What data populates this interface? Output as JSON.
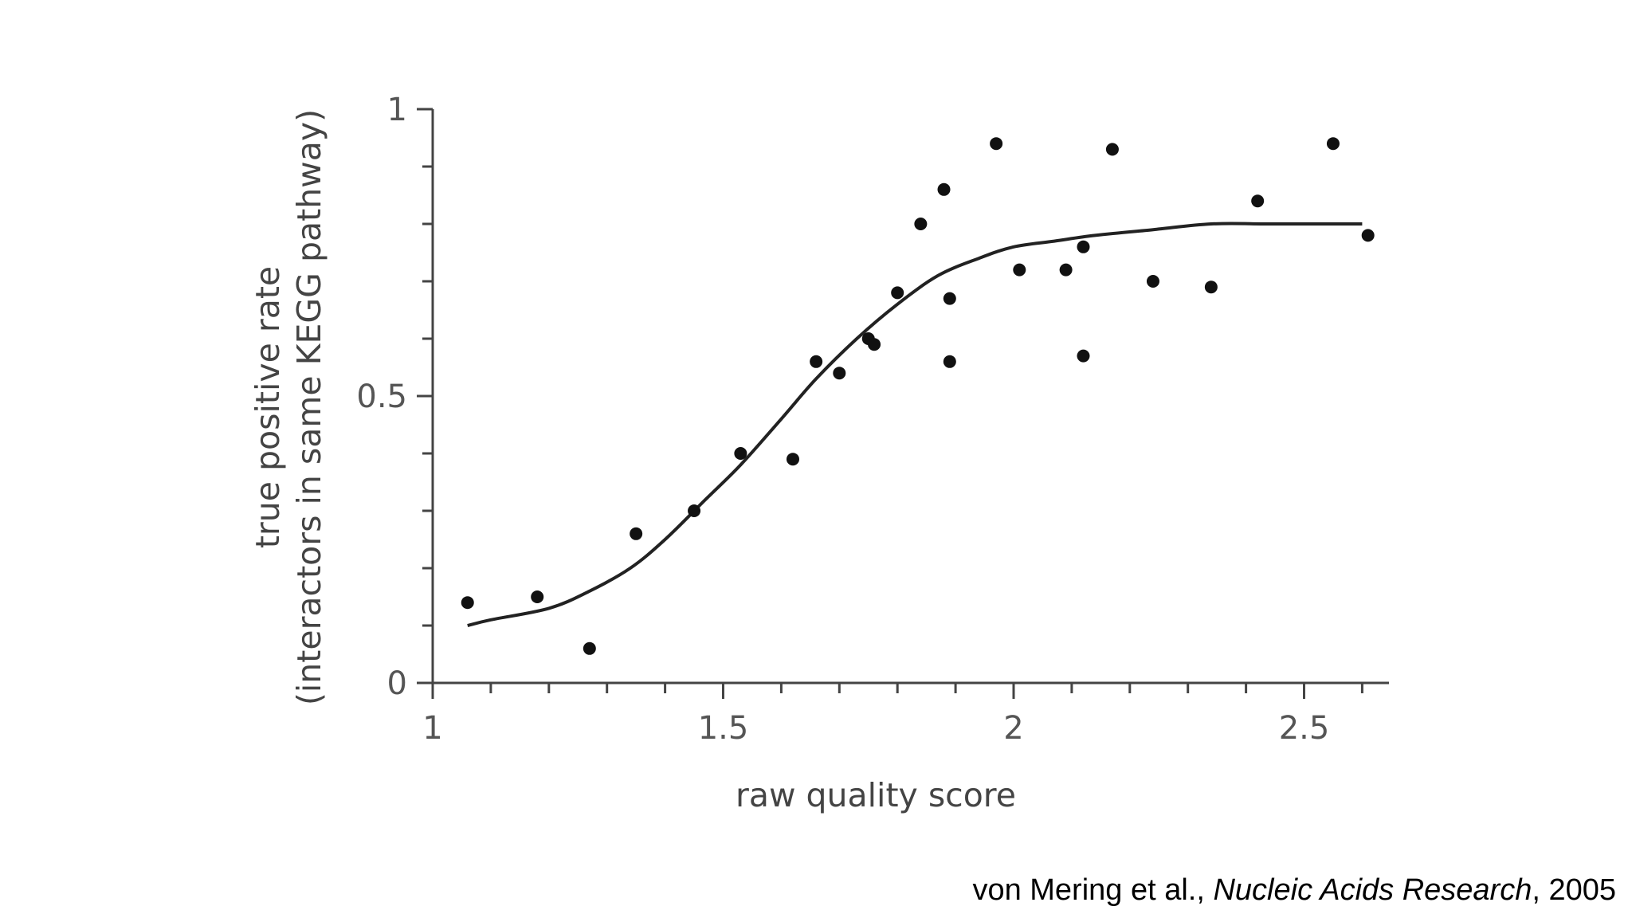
{
  "chart_data": {
    "type": "scatter",
    "xlabel": "raw quality score",
    "ylabel_line1": "true positive rate",
    "ylabel_line2": "(interactors in same KEGG pathway)",
    "xlim": [
      1,
      2.65
    ],
    "ylim": [
      0,
      1
    ],
    "x_ticks": [
      {
        "value": 1,
        "label": "1"
      },
      {
        "value": 1.5,
        "label": "1.5"
      },
      {
        "value": 2,
        "label": "2"
      },
      {
        "value": 2.5,
        "label": "2.5"
      }
    ],
    "x_minor_ticks": [
      1.1,
      1.2,
      1.3,
      1.4,
      1.6,
      1.7,
      1.8,
      1.9,
      2.1,
      2.2,
      2.3,
      2.4,
      2.6
    ],
    "y_ticks": [
      {
        "value": 0,
        "label": "0"
      },
      {
        "value": 0.5,
        "label": "0.5"
      },
      {
        "value": 1,
        "label": "1"
      }
    ],
    "y_minor_ticks": [
      0.1,
      0.2,
      0.3,
      0.4,
      0.6,
      0.7,
      0.8,
      0.9
    ],
    "points": [
      {
        "x": 1.06,
        "y": 0.14
      },
      {
        "x": 1.18,
        "y": 0.15
      },
      {
        "x": 1.27,
        "y": 0.06
      },
      {
        "x": 1.35,
        "y": 0.26
      },
      {
        "x": 1.45,
        "y": 0.3
      },
      {
        "x": 1.53,
        "y": 0.4
      },
      {
        "x": 1.62,
        "y": 0.39
      },
      {
        "x": 1.66,
        "y": 0.56
      },
      {
        "x": 1.7,
        "y": 0.54
      },
      {
        "x": 1.75,
        "y": 0.6
      },
      {
        "x": 1.76,
        "y": 0.59
      },
      {
        "x": 1.8,
        "y": 0.68
      },
      {
        "x": 1.84,
        "y": 0.8
      },
      {
        "x": 1.88,
        "y": 0.86
      },
      {
        "x": 1.89,
        "y": 0.67
      },
      {
        "x": 1.89,
        "y": 0.56
      },
      {
        "x": 1.97,
        "y": 0.94
      },
      {
        "x": 2.01,
        "y": 0.72
      },
      {
        "x": 2.09,
        "y": 0.72
      },
      {
        "x": 2.12,
        "y": 0.76
      },
      {
        "x": 2.12,
        "y": 0.57
      },
      {
        "x": 2.17,
        "y": 0.93
      },
      {
        "x": 2.24,
        "y": 0.7
      },
      {
        "x": 2.34,
        "y": 0.69
      },
      {
        "x": 2.42,
        "y": 0.84
      },
      {
        "x": 2.55,
        "y": 0.94
      },
      {
        "x": 2.61,
        "y": 0.78
      }
    ],
    "fit_curve": [
      {
        "x": 1.06,
        "y": 0.1
      },
      {
        "x": 1.1,
        "y": 0.11
      },
      {
        "x": 1.2,
        "y": 0.13
      },
      {
        "x": 1.27,
        "y": 0.16
      },
      {
        "x": 1.34,
        "y": 0.2
      },
      {
        "x": 1.4,
        "y": 0.25
      },
      {
        "x": 1.47,
        "y": 0.32
      },
      {
        "x": 1.53,
        "y": 0.38
      },
      {
        "x": 1.6,
        "y": 0.46
      },
      {
        "x": 1.66,
        "y": 0.53
      },
      {
        "x": 1.73,
        "y": 0.6
      },
      {
        "x": 1.8,
        "y": 0.66
      },
      {
        "x": 1.87,
        "y": 0.71
      },
      {
        "x": 1.94,
        "y": 0.74
      },
      {
        "x": 2.0,
        "y": 0.76
      },
      {
        "x": 2.07,
        "y": 0.77
      },
      {
        "x": 2.14,
        "y": 0.78
      },
      {
        "x": 2.24,
        "y": 0.79
      },
      {
        "x": 2.34,
        "y": 0.8
      },
      {
        "x": 2.44,
        "y": 0.8
      },
      {
        "x": 2.54,
        "y": 0.8
      },
      {
        "x": 2.6,
        "y": 0.8
      }
    ],
    "grid": false,
    "legend": "none"
  },
  "citation": {
    "authors": "von Mering et al., ",
    "journal": "Nucleic Acids Research",
    "year": ", 2005"
  }
}
